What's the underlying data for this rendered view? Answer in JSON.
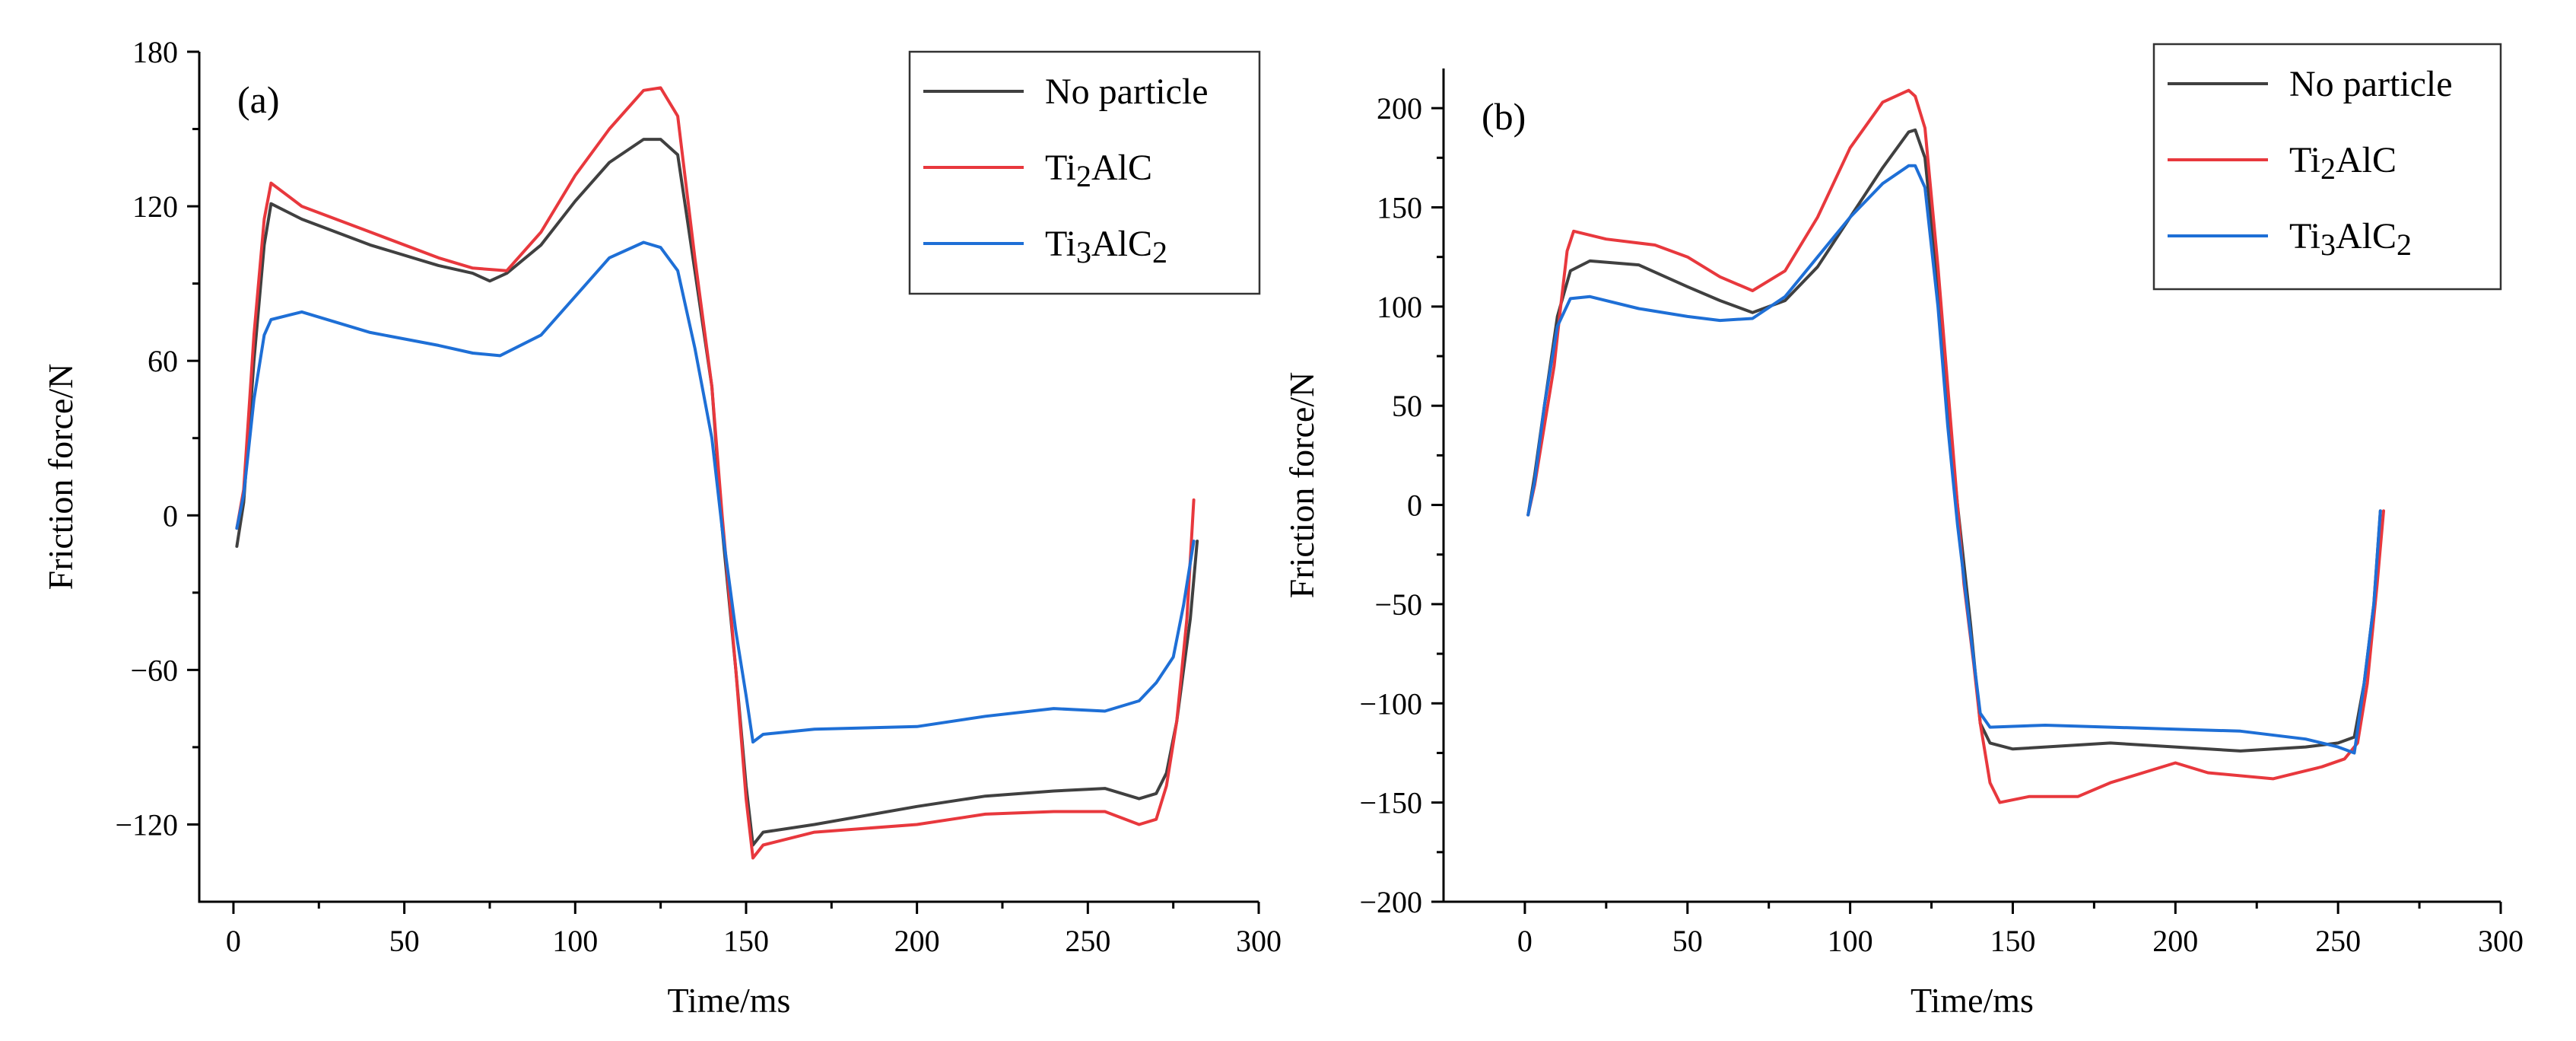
{
  "chart_data": [
    {
      "type": "line",
      "panel_label": "(a)",
      "xlabel": "Time/ms",
      "ylabel": "Friction force/N",
      "xlim": [
        -10,
        300
      ],
      "ylim": [
        -150,
        180
      ],
      "xticks": [
        0,
        50,
        100,
        150,
        200,
        250,
        300
      ],
      "yticks": [
        -120,
        -60,
        0,
        60,
        120,
        180
      ],
      "legend_position": "top-right",
      "series": [
        {
          "name": "No particle",
          "base": "No particle",
          "sub": "",
          "base2": "",
          "sub2": "",
          "color": "#404040",
          "points": [
            [
              1,
              -12
            ],
            [
              3,
              5
            ],
            [
              6,
              60
            ],
            [
              9,
              105
            ],
            [
              11,
              121
            ],
            [
              20,
              115
            ],
            [
              40,
              105
            ],
            [
              60,
              97
            ],
            [
              70,
              94
            ],
            [
              75,
              91
            ],
            [
              80,
              94
            ],
            [
              90,
              105
            ],
            [
              100,
              122
            ],
            [
              110,
              137
            ],
            [
              120,
              146
            ],
            [
              125,
              146
            ],
            [
              130,
              140
            ],
            [
              135,
              95
            ],
            [
              140,
              50
            ],
            [
              143,
              -5
            ],
            [
              147,
              -60
            ],
            [
              150,
              -105
            ],
            [
              152,
              -128
            ],
            [
              155,
              -123
            ],
            [
              170,
              -120
            ],
            [
              200,
              -113
            ],
            [
              220,
              -109
            ],
            [
              240,
              -107
            ],
            [
              255,
              -106
            ],
            [
              265,
              -110
            ],
            [
              270,
              -108
            ],
            [
              273,
              -100
            ],
            [
              276,
              -80
            ],
            [
              280,
              -40
            ],
            [
              282,
              -10
            ]
          ]
        },
        {
          "name": "Ti2AlC",
          "base": "Ti",
          "sub": "2",
          "base2": "AlC",
          "sub2": "",
          "color": "#e8383d",
          "points": [
            [
              1,
              -5
            ],
            [
              3,
              10
            ],
            [
              6,
              70
            ],
            [
              9,
              115
            ],
            [
              11,
              129
            ],
            [
              20,
              120
            ],
            [
              40,
              110
            ],
            [
              60,
              100
            ],
            [
              70,
              96
            ],
            [
              80,
              95
            ],
            [
              90,
              110
            ],
            [
              100,
              132
            ],
            [
              110,
              150
            ],
            [
              120,
              165
            ],
            [
              125,
              166
            ],
            [
              130,
              155
            ],
            [
              135,
              100
            ],
            [
              140,
              50
            ],
            [
              143,
              0
            ],
            [
              147,
              -60
            ],
            [
              150,
              -110
            ],
            [
              152,
              -133
            ],
            [
              155,
              -128
            ],
            [
              170,
              -123
            ],
            [
              200,
              -120
            ],
            [
              220,
              -116
            ],
            [
              240,
              -115
            ],
            [
              255,
              -115
            ],
            [
              265,
              -120
            ],
            [
              270,
              -118
            ],
            [
              273,
              -105
            ],
            [
              276,
              -80
            ],
            [
              279,
              -40
            ],
            [
              281,
              6
            ]
          ]
        },
        {
          "name": "Ti3AlC2",
          "base": "Ti",
          "sub": "3",
          "base2": "AlC",
          "sub2": "2",
          "color": "#1e6fd6",
          "points": [
            [
              1,
              -5
            ],
            [
              3,
              8
            ],
            [
              6,
              45
            ],
            [
              9,
              70
            ],
            [
              11,
              76
            ],
            [
              20,
              79
            ],
            [
              40,
              71
            ],
            [
              60,
              66
            ],
            [
              70,
              63
            ],
            [
              78,
              62
            ],
            [
              90,
              70
            ],
            [
              100,
              85
            ],
            [
              110,
              100
            ],
            [
              120,
              106
            ],
            [
              125,
              104
            ],
            [
              130,
              95
            ],
            [
              135,
              65
            ],
            [
              140,
              30
            ],
            [
              143,
              -5
            ],
            [
              147,
              -45
            ],
            [
              150,
              -70
            ],
            [
              152,
              -88
            ],
            [
              155,
              -85
            ],
            [
              170,
              -83
            ],
            [
              200,
              -82
            ],
            [
              220,
              -78
            ],
            [
              240,
              -75
            ],
            [
              255,
              -76
            ],
            [
              265,
              -72
            ],
            [
              270,
              -65
            ],
            [
              275,
              -55
            ],
            [
              278,
              -35
            ],
            [
              281,
              -10
            ]
          ]
        }
      ]
    },
    {
      "type": "line",
      "panel_label": "(b)",
      "xlabel": "Time/ms",
      "ylabel": "Friction force/N",
      "xlim": [
        -25,
        300
      ],
      "ylim": [
        -200,
        220
      ],
      "xticks": [
        0,
        50,
        100,
        150,
        200,
        250,
        300
      ],
      "yticks": [
        -200,
        -150,
        -100,
        -50,
        0,
        50,
        100,
        150,
        200
      ],
      "legend_position": "top-right",
      "series": [
        {
          "name": "No particle",
          "base": "No particle",
          "sub": "",
          "base2": "",
          "sub2": "",
          "color": "#404040",
          "points": [
            [
              1,
              -5
            ],
            [
              3,
              15
            ],
            [
              6,
              50
            ],
            [
              10,
              95
            ],
            [
              14,
              118
            ],
            [
              20,
              123
            ],
            [
              35,
              121
            ],
            [
              50,
              110
            ],
            [
              60,
              103
            ],
            [
              70,
              97
            ],
            [
              80,
              103
            ],
            [
              90,
              120
            ],
            [
              100,
              145
            ],
            [
              110,
              170
            ],
            [
              118,
              188
            ],
            [
              120,
              189
            ],
            [
              123,
              175
            ],
            [
              127,
              110
            ],
            [
              130,
              50
            ],
            [
              133,
              0
            ],
            [
              137,
              -60
            ],
            [
              140,
              -110
            ],
            [
              143,
              -120
            ],
            [
              150,
              -123
            ],
            [
              180,
              -120
            ],
            [
              200,
              -122
            ],
            [
              220,
              -124
            ],
            [
              240,
              -122
            ],
            [
              250,
              -120
            ],
            [
              255,
              -117
            ],
            [
              258,
              -90
            ],
            [
              261,
              -50
            ],
            [
              263,
              -3
            ]
          ]
        },
        {
          "name": "Ti2AlC",
          "base": "Ti",
          "sub": "2",
          "base2": "AlC",
          "sub2": "",
          "color": "#e8383d",
          "points": [
            [
              1,
              -5
            ],
            [
              3,
              10
            ],
            [
              6,
              40
            ],
            [
              9,
              70
            ],
            [
              11,
              100
            ],
            [
              13,
              128
            ],
            [
              15,
              138
            ],
            [
              25,
              134
            ],
            [
              40,
              131
            ],
            [
              50,
              125
            ],
            [
              60,
              115
            ],
            [
              70,
              108
            ],
            [
              80,
              118
            ],
            [
              90,
              145
            ],
            [
              100,
              180
            ],
            [
              110,
              203
            ],
            [
              118,
              209
            ],
            [
              120,
              206
            ],
            [
              123,
              190
            ],
            [
              127,
              120
            ],
            [
              131,
              40
            ],
            [
              135,
              -40
            ],
            [
              138,
              -80
            ],
            [
              140,
              -110
            ],
            [
              143,
              -140
            ],
            [
              146,
              -150
            ],
            [
              155,
              -147
            ],
            [
              170,
              -147
            ],
            [
              180,
              -140
            ],
            [
              200,
              -130
            ],
            [
              210,
              -135
            ],
            [
              230,
              -138
            ],
            [
              245,
              -132
            ],
            [
              252,
              -128
            ],
            [
              256,
              -120
            ],
            [
              259,
              -90
            ],
            [
              262,
              -40
            ],
            [
              264,
              -3
            ]
          ]
        },
        {
          "name": "Ti3AlC2",
          "base": "Ti",
          "sub": "3",
          "base2": "AlC",
          "sub2": "2",
          "color": "#1e6fd6",
          "points": [
            [
              1,
              -5
            ],
            [
              3,
              12
            ],
            [
              6,
              50
            ],
            [
              10,
              90
            ],
            [
              14,
              104
            ],
            [
              20,
              105
            ],
            [
              35,
              99
            ],
            [
              50,
              95
            ],
            [
              60,
              93
            ],
            [
              70,
              94
            ],
            [
              80,
              105
            ],
            [
              90,
              125
            ],
            [
              100,
              145
            ],
            [
              110,
              162
            ],
            [
              118,
              171
            ],
            [
              120,
              171
            ],
            [
              123,
              160
            ],
            [
              127,
              100
            ],
            [
              130,
              40
            ],
            [
              133,
              -10
            ],
            [
              137,
              -65
            ],
            [
              140,
              -105
            ],
            [
              143,
              -112
            ],
            [
              160,
              -111
            ],
            [
              180,
              -112
            ],
            [
              200,
              -113
            ],
            [
              220,
              -114
            ],
            [
              240,
              -118
            ],
            [
              250,
              -122
            ],
            [
              255,
              -125
            ],
            [
              258,
              -90
            ],
            [
              261,
              -50
            ],
            [
              263,
              -3
            ]
          ]
        }
      ]
    }
  ]
}
